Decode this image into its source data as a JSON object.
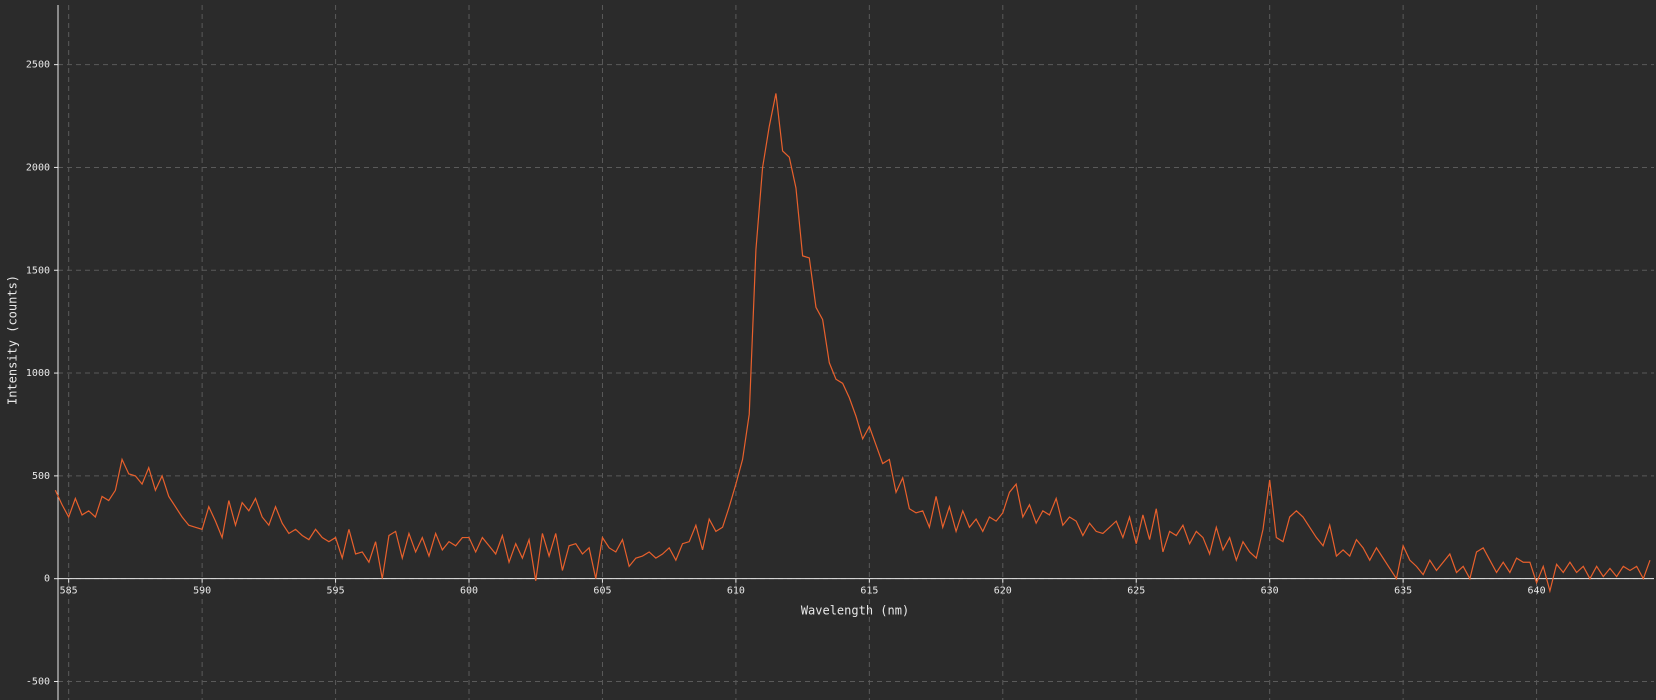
{
  "chart_data": {
    "type": "line",
    "x_label": "Wavelength (nm)",
    "y_label": "Intensity (counts)",
    "x": [
      584.5,
      584.75,
      585,
      585.25,
      585.5,
      585.75,
      586,
      586.25,
      586.5,
      586.75,
      587,
      587.25,
      587.5,
      587.75,
      588,
      588.25,
      588.5,
      588.75,
      589,
      589.25,
      589.5,
      589.75,
      590,
      590.25,
      590.5,
      590.75,
      591,
      591.25,
      591.5,
      591.75,
      592,
      592.25,
      592.5,
      592.75,
      593,
      593.25,
      593.5,
      593.75,
      594,
      594.25,
      594.5,
      594.75,
      595,
      595.25,
      595.5,
      595.75,
      596,
      596.25,
      596.5,
      596.75,
      597,
      597.25,
      597.5,
      597.75,
      598,
      598.25,
      598.5,
      598.75,
      599,
      599.25,
      599.5,
      599.75,
      600,
      600.25,
      600.5,
      600.75,
      601,
      601.25,
      601.5,
      601.75,
      602,
      602.25,
      602.5,
      602.75,
      603,
      603.25,
      603.5,
      603.75,
      604,
      604.25,
      604.5,
      604.75,
      605,
      605.25,
      605.5,
      605.75,
      606,
      606.25,
      606.5,
      606.75,
      607,
      607.25,
      607.5,
      607.75,
      608,
      608.25,
      608.5,
      608.75,
      609,
      609.25,
      609.5,
      609.75,
      610,
      610.25,
      610.5,
      610.75,
      611,
      611.25,
      611.5,
      611.75,
      612,
      612.25,
      612.5,
      612.75,
      613,
      613.25,
      613.5,
      613.75,
      614,
      614.25,
      614.5,
      614.75,
      615,
      615.25,
      615.5,
      615.75,
      616,
      616.25,
      616.5,
      616.75,
      617,
      617.25,
      617.5,
      617.75,
      618,
      618.25,
      618.5,
      618.75,
      619,
      619.25,
      619.5,
      619.75,
      620,
      620.25,
      620.5,
      620.75,
      621,
      621.25,
      621.5,
      621.75,
      622,
      622.25,
      622.5,
      622.75,
      623,
      623.25,
      623.5,
      623.75,
      624,
      624.25,
      624.5,
      624.75,
      625,
      625.25,
      625.5,
      625.75,
      626,
      626.25,
      626.5,
      626.75,
      627,
      627.25,
      627.5,
      627.75,
      628,
      628.25,
      628.5,
      628.75,
      629,
      629.25,
      629.5,
      629.75,
      630,
      630.25,
      630.5,
      630.75,
      631,
      631.25,
      631.5,
      631.75,
      632,
      632.25,
      632.5,
      632.75,
      633,
      633.25,
      633.5,
      633.75,
      634,
      634.25,
      634.5,
      634.75,
      635,
      635.25,
      635.5,
      635.75,
      636,
      636.25,
      636.5,
      636.75,
      637,
      637.25,
      637.5,
      637.75,
      638,
      638.25,
      638.5,
      638.75,
      639,
      639.25,
      639.5,
      639.75,
      640,
      640.25,
      640.5,
      640.75,
      641,
      641.25,
      641.5,
      641.75,
      642,
      642.25,
      642.5,
      642.75,
      643,
      643.25,
      643.5,
      643.75,
      644,
      644.25
    ],
    "series": [
      {
        "color": "#e8602c",
        "values": [
          430,
          360,
          300,
          390,
          310,
          330,
          300,
          400,
          380,
          430,
          580,
          510,
          500,
          460,
          540,
          430,
          500,
          400,
          350,
          300,
          260,
          250,
          240,
          350,
          280,
          200,
          380,
          260,
          370,
          330,
          390,
          300,
          260,
          350,
          270,
          220,
          240,
          210,
          190,
          240,
          200,
          180,
          200,
          100,
          240,
          120,
          130,
          80,
          180,
          0,
          210,
          230,
          100,
          220,
          130,
          200,
          110,
          220,
          140,
          180,
          160,
          200,
          200,
          130,
          200,
          160,
          120,
          210,
          80,
          170,
          100,
          190,
          -10,
          220,
          110,
          220,
          40,
          160,
          170,
          120,
          150,
          0,
          200,
          150,
          130,
          190,
          60,
          100,
          110,
          130,
          100,
          120,
          150,
          90,
          170,
          180,
          260,
          140,
          290,
          230,
          250,
          350,
          460,
          580,
          800,
          1600,
          2000,
          2200,
          2360,
          2080,
          2050,
          1900,
          1570,
          1560,
          1320,
          1260,
          1050,
          970,
          950,
          880,
          790,
          680,
          740,
          650,
          560,
          580,
          420,
          490,
          340,
          320,
          330,
          250,
          400,
          250,
          350,
          230,
          330,
          250,
          290,
          230,
          300,
          280,
          320,
          420,
          460,
          300,
          360,
          270,
          330,
          310,
          390,
          260,
          300,
          280,
          210,
          270,
          230,
          220,
          250,
          280,
          200,
          300,
          170,
          310,
          190,
          340,
          130,
          230,
          210,
          260,
          170,
          230,
          200,
          120,
          250,
          140,
          200,
          90,
          180,
          130,
          100,
          240,
          480,
          200,
          180,
          300,
          330,
          300,
          250,
          200,
          160,
          260,
          110,
          140,
          110,
          190,
          150,
          90,
          150,
          100,
          50,
          0,
          160,
          90,
          60,
          20,
          90,
          40,
          80,
          120,
          30,
          60,
          0,
          130,
          150,
          90,
          30,
          80,
          30,
          100,
          80,
          80,
          -20,
          60,
          -60,
          70,
          30,
          80,
          30,
          60,
          0,
          60,
          10,
          50,
          10,
          60,
          40,
          60,
          0,
          90
        ]
      }
    ],
    "xlim": [
      584.6,
      644.4
    ],
    "ylim": [
      -590,
      2790
    ],
    "xticks": [
      585,
      590,
      595,
      600,
      605,
      610,
      615,
      620,
      625,
      630,
      635,
      640
    ],
    "yticks": [
      -500,
      0,
      500,
      1000,
      1500,
      2000,
      2500
    ],
    "grid": true
  }
}
